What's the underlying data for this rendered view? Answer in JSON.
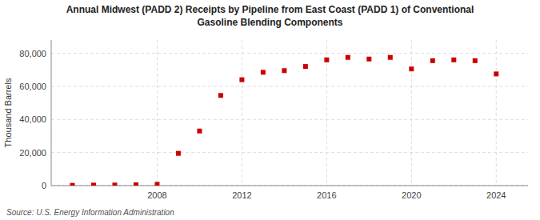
{
  "chart_data": {
    "type": "scatter",
    "title": "Annual Midwest (PADD 2) Receipts by Pipeline from East Coast (PADD 1) of Conventional\nGasoline Blending Components",
    "y_label": "Thousand Barrels",
    "annotations": [
      "Source: U.S. Energy Information Administration"
    ],
    "x": [
      2004,
      2005,
      2006,
      2007,
      2008,
      2009,
      2010,
      2011,
      2012,
      2013,
      2014,
      2015,
      2016,
      2017,
      2018,
      2019,
      2020,
      2021,
      2022,
      2023,
      2024
    ],
    "values": [
      150,
      300,
      350,
      500,
      800,
      19500,
      33000,
      54500,
      64000,
      68500,
      69500,
      72000,
      76000,
      77500,
      76500,
      77500,
      70500,
      75500,
      76000,
      75500,
      67500
    ],
    "color": "#CC0000",
    "marker": "square",
    "xlim": [
      2003.0,
      2025.5
    ],
    "xticks": [
      2008,
      2012,
      2016,
      2020,
      2024
    ],
    "ylim": [
      0,
      88000
    ],
    "yticks": [
      0,
      {
        "value": 20000,
        "label": "20,000"
      },
      {
        "value": 40000,
        "label": "40,000"
      },
      {
        "value": 60000,
        "label": "60,000"
      },
      {
        "value": 80000,
        "label": "80,000"
      }
    ],
    "grid": true
  }
}
